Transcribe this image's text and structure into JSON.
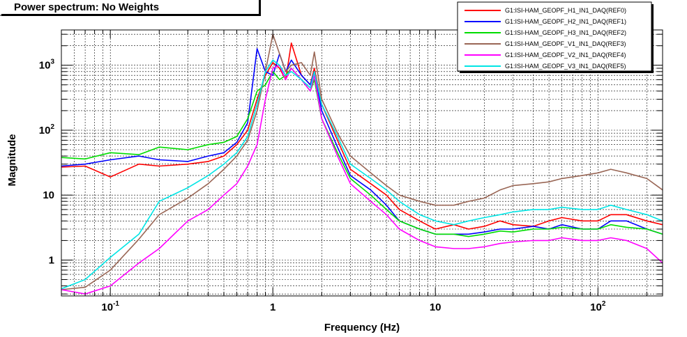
{
  "chart_data": {
    "type": "line",
    "title": "Power spectrum:  No Weights",
    "xlabel": "Frequency (Hz)",
    "ylabel": "Magnitude",
    "xscale": "log",
    "yscale": "log",
    "xlim": [
      0.05,
      250
    ],
    "ylim": [
      0.28,
      3500
    ],
    "grid": true,
    "legend_position": "top-right",
    "x_ticks": [
      {
        "value": 0.1,
        "base": "10",
        "exp": "-1"
      },
      {
        "value": 1,
        "base": "1",
        "exp": ""
      },
      {
        "value": 10,
        "base": "10",
        "exp": ""
      },
      {
        "value": 100,
        "base": "10",
        "exp": "2"
      }
    ],
    "y_ticks": [
      {
        "value": 1,
        "base": "1",
        "exp": ""
      },
      {
        "value": 10,
        "base": "10",
        "exp": ""
      },
      {
        "value": 100,
        "base": "10",
        "exp": "2"
      },
      {
        "value": 1000,
        "base": "10",
        "exp": "3"
      }
    ],
    "x": [
      0.05,
      0.07,
      0.1,
      0.15,
      0.2,
      0.3,
      0.4,
      0.5,
      0.6,
      0.7,
      0.8,
      0.9,
      1.0,
      1.1,
      1.2,
      1.3,
      1.5,
      1.7,
      1.8,
      2.0,
      2.5,
      3,
      4,
      5,
      6,
      8,
      10,
      13,
      16,
      20,
      25,
      30,
      40,
      50,
      60,
      80,
      100,
      120,
      150,
      200,
      250
    ],
    "series": [
      {
        "name": "G1:ISI-HAM_GEOPF_H1_IN1_DAQ(REF0)",
        "color": "#ff0000",
        "values": [
          27,
          28,
          19,
          30,
          28,
          30,
          33,
          40,
          60,
          100,
          300,
          700,
          1100,
          900,
          600,
          2200,
          700,
          500,
          900,
          250,
          70,
          25,
          15,
          10,
          6,
          4,
          3,
          3.5,
          3,
          3.3,
          4,
          3.5,
          3.3,
          4,
          4.5,
          4,
          4,
          5,
          5,
          4,
          3.5
        ]
      },
      {
        "name": "G1:ISI-HAM_GEOPF_H2_IN1_DAQ(REF1)",
        "color": "#0000ff",
        "values": [
          28,
          30,
          35,
          40,
          35,
          33,
          40,
          45,
          65,
          130,
          1800,
          800,
          700,
          1500,
          800,
          1200,
          700,
          500,
          800,
          200,
          55,
          20,
          12,
          7,
          4,
          3,
          2.5,
          2.5,
          2.5,
          2.7,
          3,
          3,
          3.3,
          3,
          3.5,
          3,
          3,
          4,
          4,
          3,
          2.5
        ]
      },
      {
        "name": "G1:ISI-HAM_GEOPF_H3_IN1_DAQ(REF2)",
        "color": "#00dd00",
        "values": [
          38,
          36,
          45,
          42,
          55,
          50,
          60,
          65,
          80,
          150,
          400,
          500,
          800,
          600,
          700,
          900,
          600,
          400,
          600,
          150,
          45,
          18,
          10,
          6,
          4,
          3,
          2.5,
          2.5,
          2.3,
          2.5,
          2.8,
          2.7,
          3,
          3,
          3.2,
          3,
          3,
          3.5,
          3.2,
          3,
          2.5
        ]
      },
      {
        "name": "G1:ISI-HAM_GEOPF_V1_IN1_DAQ(REF3)",
        "color": "#996655",
        "values": [
          0.35,
          0.38,
          0.7,
          2.1,
          5,
          9,
          15,
          25,
          40,
          70,
          200,
          800,
          3000,
          1500,
          800,
          1000,
          1100,
          700,
          1600,
          300,
          90,
          40,
          22,
          14,
          10,
          8,
          7,
          7,
          8,
          9,
          12,
          14,
          15,
          16,
          18,
          20,
          22,
          25,
          22,
          18,
          12
        ]
      },
      {
        "name": "G1:ISI-HAM_GEOPF_V2_IN1_DAQ(REF4)",
        "color": "#ff00ff",
        "values": [
          0.35,
          0.3,
          0.4,
          0.9,
          1.5,
          4,
          6,
          10,
          15,
          28,
          60,
          300,
          900,
          1000,
          600,
          900,
          600,
          400,
          700,
          150,
          40,
          15,
          8,
          5,
          3,
          2,
          1.6,
          1.5,
          1.5,
          1.6,
          1.8,
          1.9,
          2,
          2,
          2.2,
          2,
          2,
          2.2,
          2,
          1.5,
          0.9
        ]
      },
      {
        "name": "G1:ISI-HAM_GEOPF_V3_IN1_DAQ(REF5)",
        "color": "#00e5e5",
        "values": [
          0.36,
          0.5,
          1.1,
          2.5,
          8,
          13,
          20,
          30,
          45,
          80,
          250,
          800,
          1200,
          1000,
          700,
          800,
          600,
          450,
          800,
          250,
          80,
          30,
          18,
          12,
          8,
          5,
          4,
          3.5,
          4,
          4.5,
          5,
          5.5,
          6,
          6,
          6.5,
          6,
          6,
          7,
          6,
          5,
          4
        ]
      }
    ]
  }
}
